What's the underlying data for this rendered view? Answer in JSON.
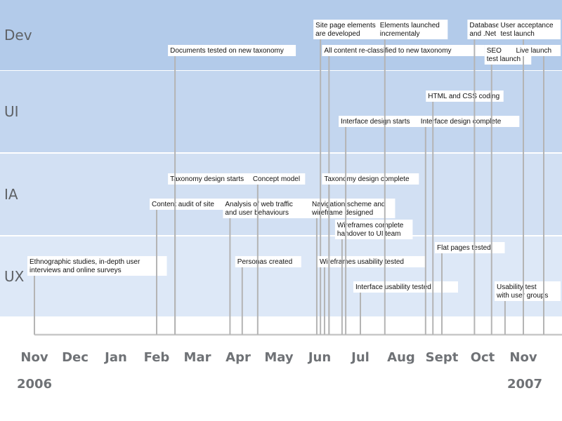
{
  "chart_data": {
    "type": "timeline",
    "title": "",
    "lanes": [
      {
        "id": "dev",
        "label": "Dev",
        "color": "#b3cbea"
      },
      {
        "id": "ui",
        "label": "UI",
        "color": "#c3d6ef"
      },
      {
        "id": "ia",
        "label": "IA",
        "color": "#d2e0f3"
      },
      {
        "id": "ux",
        "label": "UX",
        "color": "#dde8f7"
      }
    ],
    "x_axis": {
      "ticks": [
        "Nov",
        "Dec",
        "Jan",
        "Feb",
        "Mar",
        "Apr",
        "May",
        "Jun",
        "Jul",
        "Aug",
        "Sept",
        "Oct",
        "Nov"
      ],
      "years": [
        {
          "label": "2006",
          "at": 0
        },
        {
          "label": "2007",
          "at": 12
        }
      ]
    },
    "events": [
      {
        "id": "ethno",
        "lines": [
          "Ethnographic studies, in-depth user",
          "interviews and online surveys"
        ],
        "t": 0.0,
        "lane": "ux",
        "row": 1
      },
      {
        "id": "content-audit",
        "lines": [
          "Content audit of site"
        ],
        "t": 3.0,
        "lane": "ia",
        "row": 2
      },
      {
        "id": "taxonomy-starts",
        "lines": [
          "Taxonomy design starts"
        ],
        "t": 3.45,
        "lane": "ia",
        "row": 1
      },
      {
        "id": "docs-tested",
        "lines": [
          "Documents tested on new taxonomy"
        ],
        "t": 3.45,
        "lane": "dev",
        "row": 2
      },
      {
        "id": "web-traffic",
        "lines": [
          "Analysis of web traffic",
          "and user behaviours"
        ],
        "t": 4.8,
        "lane": "ia",
        "row": 2
      },
      {
        "id": "personas",
        "lines": [
          "Personas created"
        ],
        "t": 5.1,
        "lane": "ux",
        "row": 1
      },
      {
        "id": "concept-model",
        "lines": [
          "Concept model"
        ],
        "t": 5.48,
        "lane": "ia",
        "row": 1
      },
      {
        "id": "nav-scheme",
        "lines": [
          "Navigation scheme and",
          "wireframe designed"
        ],
        "t": 6.93,
        "lane": "ia",
        "row": 2
      },
      {
        "id": "site-elements",
        "lines": [
          "Site page elements",
          "are developed"
        ],
        "t": 7.02,
        "lane": "dev",
        "row": 1
      },
      {
        "id": "wf-usability",
        "lines": [
          "Wireframes usability tested"
        ],
        "t": 7.12,
        "lane": "ux",
        "row": 1
      },
      {
        "id": "all-content",
        "lines": [
          "All content re-classified to new taxonomy"
        ],
        "t": 7.23,
        "lane": "dev",
        "row": 2
      },
      {
        "id": "taxonomy-complete",
        "lines": [
          "Taxonomy design complete"
        ],
        "t": 7.23,
        "lane": "ia",
        "row": 1
      },
      {
        "id": "wf-complete",
        "lines": [
          "Wireframes complete",
          "handover to UI team"
        ],
        "t": 7.55,
        "lane": "ia",
        "row": 3
      },
      {
        "id": "interface-starts",
        "lines": [
          "Interface design starts"
        ],
        "t": 7.64,
        "lane": "ui",
        "row": 2
      },
      {
        "id": "interface-usability",
        "lines": [
          "Interface usability tested"
        ],
        "t": 8.0,
        "lane": "ux",
        "row": 2
      },
      {
        "id": "elements-launched",
        "lines": [
          "Elements launched",
          "incrementaly"
        ],
        "t": 8.6,
        "lane": "dev",
        "row": 1
      },
      {
        "id": "interface-complete",
        "lines": [
          "Interface design complete"
        ],
        "t": 9.6,
        "lane": "ui",
        "row": 2
      },
      {
        "id": "html-css",
        "lines": [
          "HTML and CSS coding"
        ],
        "t": 9.78,
        "lane": "ui",
        "row": 1
      },
      {
        "id": "flat-pages",
        "lines": [
          "Flat pages tested"
        ],
        "t": 10.0,
        "lane": "ux",
        "row": 0
      },
      {
        "id": "database",
        "lines": [
          "Database work",
          "and .Net coding"
        ],
        "t": 10.8,
        "lane": "dev",
        "row": 1
      },
      {
        "id": "seo",
        "lines": [
          "SEO",
          "test launch"
        ],
        "t": 11.22,
        "lane": "dev",
        "row": 2
      },
      {
        "id": "usability-test",
        "lines": [
          "Usability test",
          "with user groups"
        ],
        "t": 11.55,
        "lane": "ux",
        "row": 2
      },
      {
        "id": "uat",
        "lines": [
          "User acceptance",
          "test launch"
        ],
        "t": 12.0,
        "lane": "dev",
        "row": 1
      },
      {
        "id": "live",
        "lines": [
          "Live launch"
        ],
        "t": 12.5,
        "lane": "dev",
        "row": 2
      }
    ],
    "colors": {
      "line": "#b4b4b4",
      "axis": "#c8c8c8",
      "lane_border": "#ffffff",
      "label_box": "#ffffff"
    }
  }
}
